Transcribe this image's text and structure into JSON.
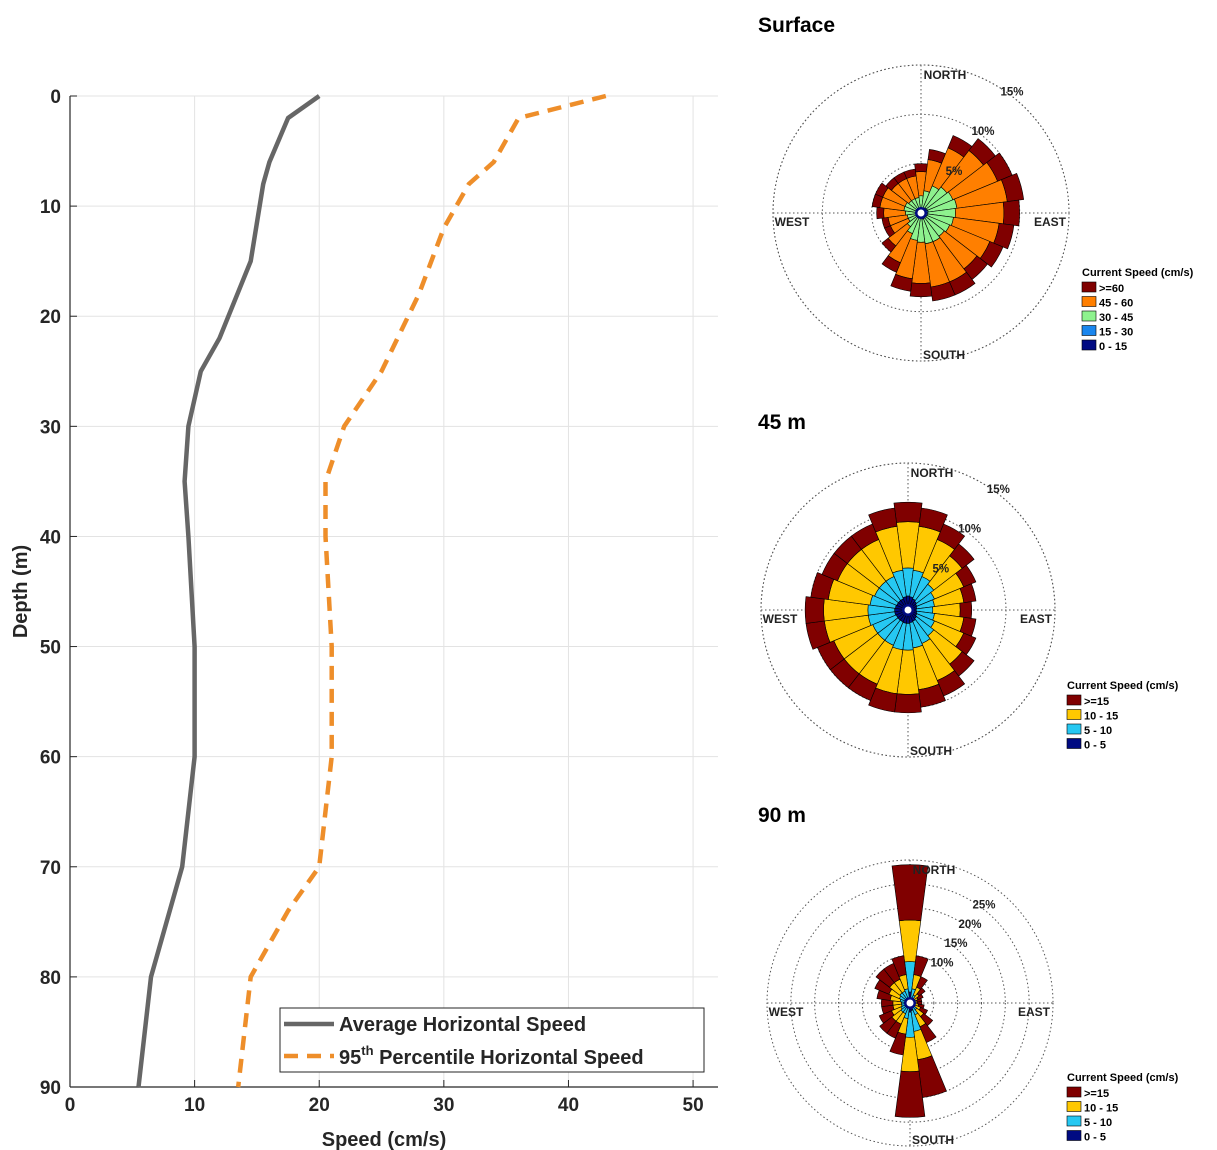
{
  "chart_data": [
    {
      "type": "line",
      "xlabel": "Speed (cm/s)",
      "ylabel": "Depth (m)",
      "xlim": [
        0,
        52
      ],
      "ylim": [
        0,
        90
      ],
      "y_reversed": true,
      "xticks": [
        0,
        10,
        20,
        30,
        40,
        50
      ],
      "yticks": [
        0,
        10,
        20,
        30,
        40,
        50,
        60,
        70,
        80,
        90
      ],
      "grid": true,
      "legend_position": "bottom-right",
      "series": [
        {
          "name": "Average Horizontal Speed",
          "color": "#666666",
          "style": "solid",
          "points": [
            [
              20,
              0
            ],
            [
              17.5,
              2
            ],
            [
              16,
              6
            ],
            [
              15.5,
              8
            ],
            [
              14.5,
              15
            ],
            [
              12,
              22
            ],
            [
              10.5,
              25
            ],
            [
              9.5,
              30
            ],
            [
              9.2,
              35
            ],
            [
              9.5,
              40
            ],
            [
              10,
              50
            ],
            [
              10,
              60
            ],
            [
              9,
              70
            ],
            [
              6.5,
              80
            ],
            [
              5.5,
              90
            ]
          ]
        },
        {
          "name": "95",
          "name_sup": "th",
          "name_rest": " Percentile Horizontal Speed",
          "color": "#ee8e2a",
          "style": "dashed",
          "points": [
            [
              43,
              0
            ],
            [
              36,
              2
            ],
            [
              34,
              6
            ],
            [
              32,
              8
            ],
            [
              30,
              12
            ],
            [
              28,
              18
            ],
            [
              25,
              25
            ],
            [
              22,
              30
            ],
            [
              20.5,
              35
            ],
            [
              20.5,
              40
            ],
            [
              21,
              50
            ],
            [
              21,
              60
            ],
            [
              20,
              70
            ],
            [
              17.5,
              74
            ],
            [
              14.5,
              80
            ],
            [
              13.5,
              90
            ]
          ]
        }
      ]
    },
    {
      "type": "wind-rose",
      "title": "Surface",
      "directions": [
        "NORTH",
        "EAST",
        "SOUTH",
        "WEST"
      ],
      "ring_percent": [
        5,
        10,
        15
      ],
      "ring_labels": [
        "5%",
        "10%",
        "15%"
      ],
      "max_percent": 15,
      "legend_title": "Current Speed (cm/s)",
      "bins": [
        {
          "label": ">=60",
          "color": "#800000"
        },
        {
          "label": "45 - 60",
          "color": "#ff7f00"
        },
        {
          "label": "30 - 45",
          "color": "#8ef28e"
        },
        {
          "label": "15 - 30",
          "color": "#1a86ee"
        },
        {
          "label": "0 - 15",
          "color": "#000a82"
        }
      ],
      "sector_totals_percent": [
        5,
        6.5,
        8.5,
        9.5,
        10,
        10.5,
        10,
        9.5,
        9,
        8.5,
        9,
        9,
        8.5,
        8,
        6.5,
        5,
        4,
        4,
        4.5,
        5,
        5,
        4.5,
        4.5,
        4.5
      ],
      "bin_fractions": [
        0.16,
        0.49,
        0.28,
        0.05,
        0.02
      ]
    },
    {
      "type": "wind-rose",
      "title": "45 m",
      "directions": [
        "NORTH",
        "EAST",
        "SOUTH",
        "WEST"
      ],
      "ring_percent": [
        5,
        10,
        15
      ],
      "ring_labels": [
        "5%",
        "10%",
        "15%"
      ],
      "max_percent": 15,
      "legend_title": "Current Speed (cm/s)",
      "bins": [
        {
          "label": ">=15",
          "color": "#800000"
        },
        {
          "label": "10 - 15",
          "color": "#ffc800"
        },
        {
          "label": "5 - 10",
          "color": "#26c8f2"
        },
        {
          "label": "0 - 5",
          "color": "#000a82"
        }
      ],
      "sector_totals_percent": [
        11,
        10.5,
        9.5,
        8.5,
        7.5,
        7,
        6.5,
        7,
        7.5,
        8.5,
        9.5,
        10,
        10.5,
        10.5,
        10,
        10,
        10,
        10.5,
        10.5,
        10,
        9.5,
        9.5,
        9.5,
        10.5
      ],
      "bin_fractions": [
        0.18,
        0.43,
        0.26,
        0.13
      ]
    },
    {
      "type": "wind-rose",
      "title": "90 m",
      "directions": [
        "NORTH",
        "EAST",
        "SOUTH",
        "WEST"
      ],
      "ring_percent": [
        5,
        10,
        15,
        20,
        25
      ],
      "ring_labels": [
        "10%",
        "15%",
        "20%",
        "25%"
      ],
      "max_percent": 30,
      "legend_title": "Current Speed (cm/s)",
      "bins": [
        {
          "label": ">=15",
          "color": "#800000"
        },
        {
          "label": "10 - 15",
          "color": "#ffc800"
        },
        {
          "label": "5 - 10",
          "color": "#26c8f2"
        },
        {
          "label": "0 - 5",
          "color": "#000a82"
        }
      ],
      "sector_totals_percent": [
        29,
        10,
        6,
        4,
        3,
        2.5,
        2.5,
        3,
        4,
        6,
        9,
        20,
        24,
        11,
        8,
        8,
        7,
        6,
        6,
        7,
        8,
        9,
        9,
        10
      ],
      "bin_fractions": [
        0.4,
        0.3,
        0.22,
        0.08
      ]
    }
  ]
}
